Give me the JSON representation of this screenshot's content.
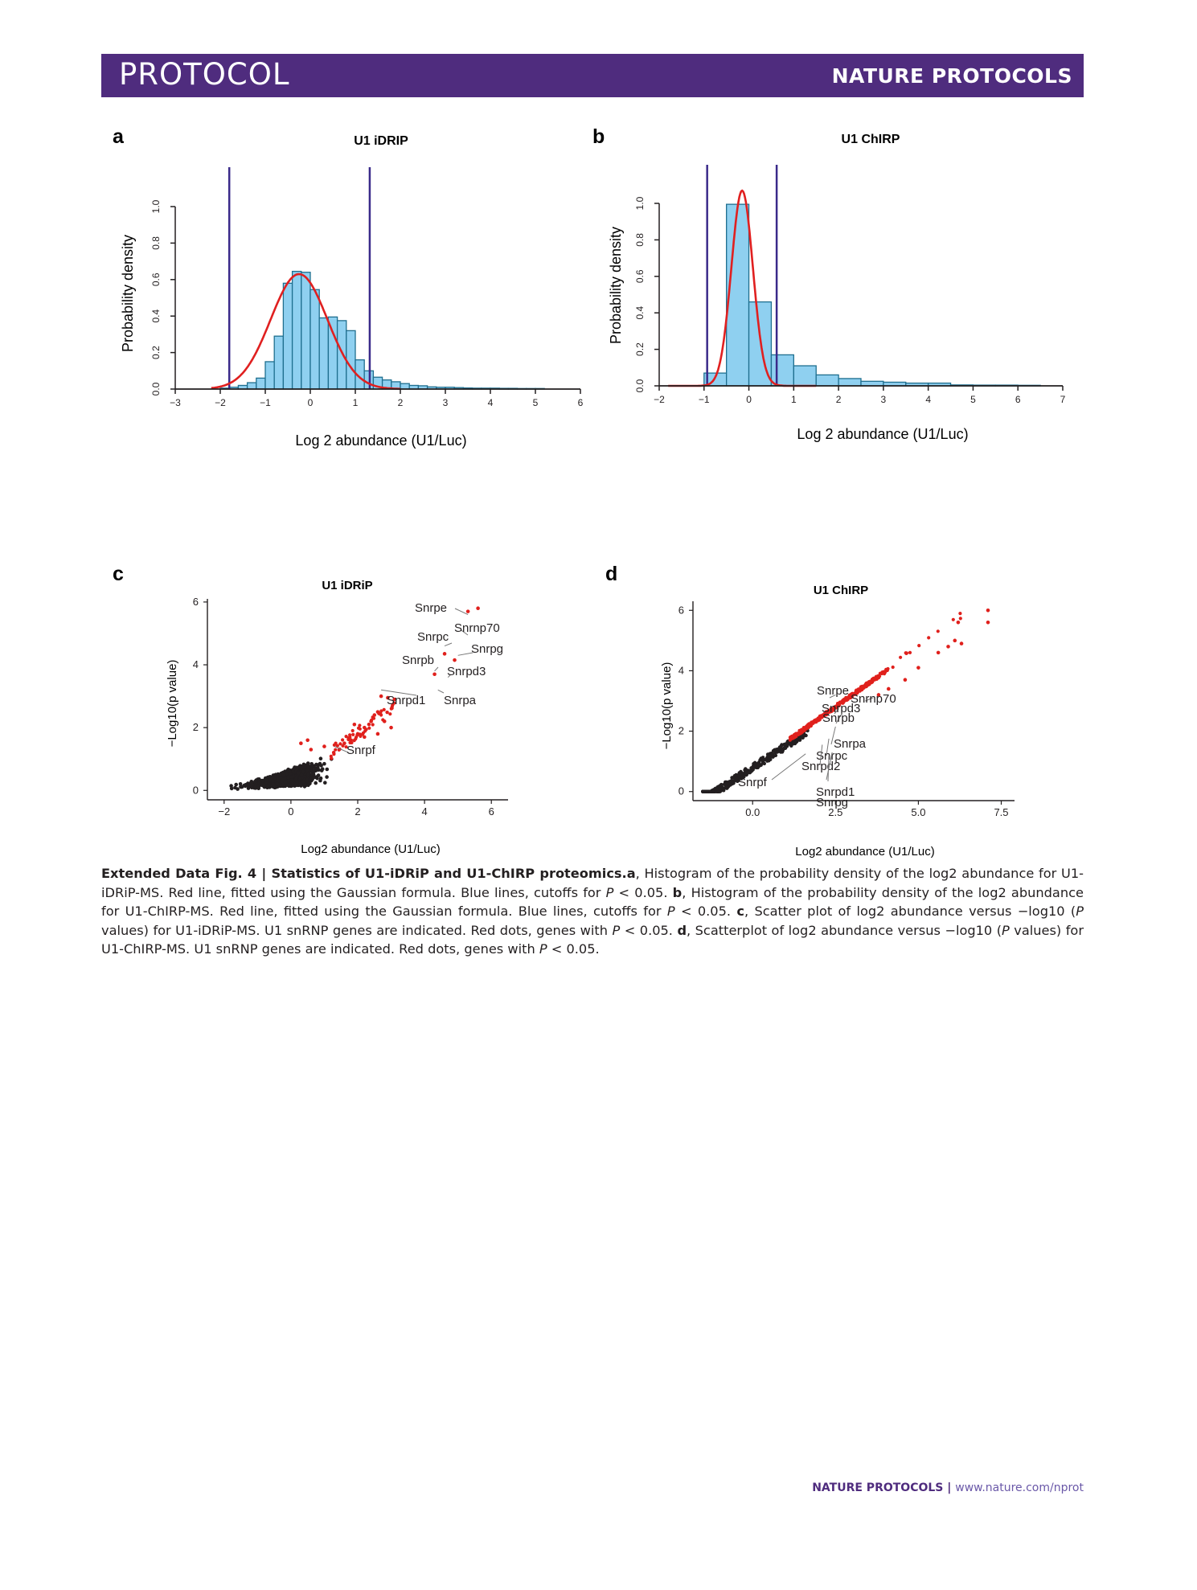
{
  "header": {
    "left": "PROTOCOL",
    "right": "NATURE PROTOCOLS"
  },
  "panels": {
    "a": "a",
    "b": "b",
    "c": "c",
    "d": "d"
  },
  "caption": {
    "label": "Extended Data Fig. 4 | Statistics of U1-iDRiP and U1-ChIRP proteomics.",
    "a_letter": "a",
    "a_text": ", Histogram of the probability density of the log2 abundance for U1-iDRiP-MS. Red line, fitted using the Gaussian formula. Blue lines, cutoffs for ",
    "p1": "P",
    "a_end": " < 0.05. ",
    "b_letter": "b",
    "b_text": ", Histogram of the probability density of the log2 abundance for U1-ChIRP-MS. Red line, fitted using the Gaussian formula. Blue lines, cutoffs for ",
    "p2": "P",
    "b_end": " < 0.05. ",
    "c_letter": "c",
    "c_text": ", Scatter plot of log2 abundance versus −log10 (",
    "p3": "P",
    "c_mid": " values) for U1-iDRiP-MS. U1 snRNP genes are indicated. Red dots, genes with ",
    "p4": "P",
    "c_end": " < 0.05. ",
    "d_letter": "d",
    "d_text": ", Scatterplot of log2 abundance versus −log10 (",
    "p5": "P",
    "d_mid": " values) for U1-ChIRP-MS. U1 snRNP genes are indicated. Red dots, genes with ",
    "p6": "P",
    "d_end": " < 0.05."
  },
  "footer": {
    "journal": "NATURE PROTOCOLS",
    "sep": " | ",
    "url": "www.nature.com/nprot"
  },
  "colors": {
    "banner": "#4f2c7e",
    "bar_fill": "#8fd0f0",
    "bar_stroke": "#1f6f8f",
    "fit": "#e02020",
    "cutoff": "#3a2a8a",
    "sig": "#e0201c",
    "nonsig": "#231f20"
  },
  "chart_data": [
    {
      "id": "a",
      "type": "bar",
      "title": "U1 iDRIP",
      "xlabel": "Log 2 abundance (U1/Luc)",
      "ylabel": "Probability density",
      "xlim": [
        -3,
        6
      ],
      "ylim": [
        0,
        1.0
      ],
      "xticks": [
        -3,
        -2,
        -1,
        0,
        1,
        2,
        3,
        4,
        5,
        6
      ],
      "xtick_labels": [
        "−3",
        "−2",
        "−1",
        "0",
        "1",
        "2",
        "3",
        "4",
        "5",
        "6"
      ],
      "yticks": [
        0,
        0.2,
        0.4,
        0.6,
        0.8,
        1.0
      ],
      "ytick_labels": [
        "0.0",
        "0.2",
        "0.4",
        "0.6",
        "0.8",
        "1.0"
      ],
      "bin_edges": [
        -2.0,
        -1.8,
        -1.6,
        -1.4,
        -1.2,
        -1.0,
        -0.8,
        -0.6,
        -0.4,
        -0.2,
        0.0,
        0.2,
        0.4,
        0.6,
        0.8,
        1.0,
        1.2,
        1.4,
        1.6,
        1.8,
        2.0,
        2.2,
        2.4,
        2.6,
        2.8,
        3.0,
        3.2,
        3.4,
        3.6,
        3.8,
        4.0,
        4.2,
        4.4,
        4.6,
        4.8,
        5.0,
        5.2
      ],
      "density": [
        0.005,
        0.01,
        0.02,
        0.035,
        0.06,
        0.15,
        0.29,
        0.58,
        0.645,
        0.64,
        0.545,
        0.39,
        0.395,
        0.375,
        0.32,
        0.16,
        0.1,
        0.065,
        0.05,
        0.04,
        0.03,
        0.02,
        0.018,
        0.012,
        0.01,
        0.01,
        0.008,
        0.006,
        0.005,
        0.005,
        0.005,
        0.004,
        0.004,
        0.003,
        0.003,
        0.003
      ],
      "fit": {
        "mean": -0.25,
        "sd": 0.63,
        "peak": 0.63,
        "range": [
          -2.2,
          2.0
        ]
      },
      "cutoffs": [
        -1.8,
        1.32
      ]
    },
    {
      "id": "b",
      "type": "bar",
      "title": "U1 ChIRP",
      "xlabel": "Log 2 abundance (U1/Luc)",
      "ylabel": "Probability density",
      "xlim": [
        -2,
        7
      ],
      "ylim": [
        0,
        1.0
      ],
      "xticks": [
        -2,
        -1,
        0,
        1,
        2,
        3,
        4,
        5,
        6,
        7
      ],
      "xtick_labels": [
        "−2",
        "−1",
        "0",
        "1",
        "2",
        "3",
        "4",
        "5",
        "6",
        "7"
      ],
      "yticks": [
        0,
        0.2,
        0.4,
        0.6,
        0.8,
        1.0
      ],
      "ytick_labels": [
        "0.0",
        "0.2",
        "0.4",
        "0.6",
        "0.8",
        "1.0"
      ],
      "bin_edges": [
        -1.0,
        -0.5,
        0.0,
        0.5,
        1.0,
        1.5,
        2.0,
        2.5,
        3.0,
        3.5,
        4.0,
        4.5,
        5.0,
        5.5,
        6.0,
        6.5
      ],
      "density": [
        0.07,
        0.995,
        0.46,
        0.17,
        0.11,
        0.06,
        0.04,
        0.025,
        0.02,
        0.015,
        0.015,
        0.005,
        0.004,
        0.004,
        0.003
      ],
      "fit": {
        "mean": -0.15,
        "sd": 0.24,
        "peak": 1.07,
        "range": [
          -1.8,
          1.5
        ]
      },
      "cutoffs": [
        -0.93,
        0.62
      ]
    },
    {
      "id": "c",
      "type": "scatter",
      "title": "U1 iDRiP",
      "xlabel": "Log2 abundance (U1/Luc)",
      "ylabel": "−Log10(p value)",
      "xlim": [
        -2.5,
        6.5
      ],
      "ylim": [
        -0.3,
        6.1
      ],
      "xticks": [
        -2,
        0,
        2,
        4,
        6
      ],
      "xtick_labels": [
        "−2",
        "0",
        "2",
        "4",
        "6"
      ],
      "yticks": [
        0,
        2,
        4,
        6
      ],
      "ytick_labels": [
        "0",
        "2",
        "4",
        "6"
      ],
      "labels": [
        {
          "name": "Snrpe",
          "x": 5.3,
          "y": 5.6
        },
        {
          "name": "Snrnp70",
          "x": 5.1,
          "y": 5.1
        },
        {
          "name": "Snrpc",
          "x": 4.6,
          "y": 4.6
        },
        {
          "name": "Snrpg",
          "x": 5.0,
          "y": 4.3
        },
        {
          "name": "Snrpb",
          "x": 4.3,
          "y": 3.8
        },
        {
          "name": "Snrpd3",
          "x": 4.7,
          "y": 3.6
        },
        {
          "name": "Snrpd1",
          "x": 2.7,
          "y": 3.2
        },
        {
          "name": "Snrpa",
          "x": 4.4,
          "y": 3.2
        },
        {
          "name": "Snrpf",
          "x": 1.3,
          "y": 1.4
        }
      ],
      "extra_sig": [
        [
          5.3,
          5.7
        ],
        [
          5.6,
          5.8
        ],
        [
          4.6,
          4.35
        ],
        [
          4.9,
          4.15
        ],
        [
          4.3,
          3.7
        ],
        [
          2.7,
          3.0
        ],
        [
          2.9,
          2.95
        ],
        [
          3.1,
          2.9
        ],
        [
          2.5,
          2.4
        ],
        [
          2.6,
          2.5
        ],
        [
          2.8,
          2.2
        ],
        [
          3.0,
          2.0
        ],
        [
          2.4,
          2.2
        ],
        [
          2.2,
          2.0
        ],
        [
          2.0,
          1.8
        ],
        [
          1.8,
          1.6
        ],
        [
          1.6,
          1.5
        ],
        [
          2.6,
          1.8
        ],
        [
          0.5,
          1.6
        ],
        [
          0.3,
          1.5
        ],
        [
          0.6,
          1.3
        ],
        [
          1.0,
          1.4
        ],
        [
          2.2,
          1.7
        ],
        [
          1.9,
          2.1
        ]
      ]
    },
    {
      "id": "d",
      "type": "scatter",
      "title": "U1 ChIRP",
      "xlabel": "Log2 abundance (U1/Luc)",
      "ylabel": "−Log10(p value)",
      "xlim": [
        -1.8,
        7.9
      ],
      "ylim": [
        -0.3,
        6.3
      ],
      "xticks": [
        0,
        2.5,
        5,
        7.5
      ],
      "xtick_labels": [
        "0.0",
        "2.5",
        "5.0",
        "7.5"
      ],
      "yticks": [
        0,
        2,
        4,
        6
      ],
      "ytick_labels": [
        "0",
        "2",
        "4",
        "6"
      ],
      "labels": [
        {
          "name": "Snrpe",
          "x": 2.5,
          "y": 3.2
        },
        {
          "name": "Snrnp70",
          "x": 3.4,
          "y": 3.0
        },
        {
          "name": "Snrpd3",
          "x": 2.6,
          "y": 2.75
        },
        {
          "name": "Snrpb",
          "x": 2.7,
          "y": 2.6
        },
        {
          "name": "Snrpa",
          "x": 2.5,
          "y": 2.15
        },
        {
          "name": "Snrpc",
          "x": 2.3,
          "y": 1.75
        },
        {
          "name": "Snrpd2",
          "x": 2.1,
          "y": 1.55
        },
        {
          "name": "Snrpf",
          "x": 1.6,
          "y": 1.25
        },
        {
          "name": "Snrpd1",
          "x": 2.4,
          "y": 1.3
        },
        {
          "name": "Snrpg",
          "x": 2.3,
          "y": 1.2
        }
      ],
      "extra_sig": [
        [
          7.1,
          6.0
        ],
        [
          7.1,
          5.6
        ],
        [
          6.2,
          5.6
        ],
        [
          6.1,
          5.0
        ],
        [
          5.9,
          4.8
        ],
        [
          6.3,
          4.9
        ],
        [
          5.6,
          4.6
        ],
        [
          5.0,
          4.1
        ],
        [
          4.6,
          3.7
        ],
        [
          4.1,
          3.4
        ],
        [
          3.8,
          3.2
        ]
      ]
    }
  ]
}
